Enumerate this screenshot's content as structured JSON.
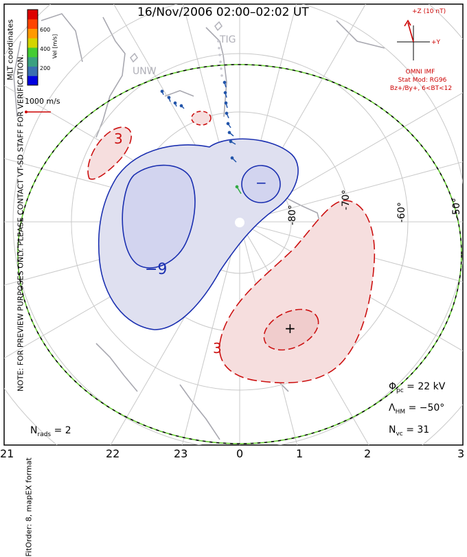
{
  "title": "16/Nov/2006 02:00–02:02 UT",
  "side_note": "NOTE: FOR PREVIEW PURPOSES ONLY. PLEASE CONTACT VT-SD STAFF FOR VERIFICATION.",
  "fit_order": "FitOrder: 8, mapEX format",
  "coord_label": "MLT coordinates",
  "colorbar": {
    "label": "Vel [m/s]",
    "ticks": [
      "600",
      "400",
      "200"
    ],
    "colors": [
      "#0000e0",
      "#3a6fb0",
      "#3aa080",
      "#44cc33",
      "#d4d400",
      "#ff9900",
      "#ff4400",
      "#dd0000"
    ]
  },
  "vector_scale": "1000 m/s",
  "mlt_labels": [
    "21",
    "22",
    "23",
    "0",
    "1",
    "2",
    "3"
  ],
  "lat_labels": [
    "-80°",
    "-70°",
    "-60°",
    "-50°"
  ],
  "contour_labels": [
    "−",
    "−9",
    "3",
    "+",
    "3"
  ],
  "stations": [
    "TIG",
    "UNW"
  ],
  "imf": {
    "z_label": "+Z (10 nT)",
    "y_label": "+Y",
    "source": "OMNI IMF",
    "model": "Stat Mod: RG96",
    "condition": "Bz+/By+, 6<BT<12"
  },
  "stats": {
    "phi_symbol": "Φ",
    "phi_sub": "pc",
    "phi_value": "= 22 kV",
    "lambda_symbol": "Λ",
    "lambda_sub": "HM",
    "lambda_value": "= −50°",
    "nvc_symbol": "N",
    "nvc_sub": "vc",
    "nvc_value": "= 31",
    "nrads_symbol": "N",
    "nrads_sub": "rads",
    "nrads_value": "= 2"
  },
  "colors": {
    "negative": "#1a2fb0",
    "positive": "#cc1111",
    "boundary": "#66cc33",
    "coast": "#a8a8b0",
    "grid": "#c8c8c8"
  }
}
